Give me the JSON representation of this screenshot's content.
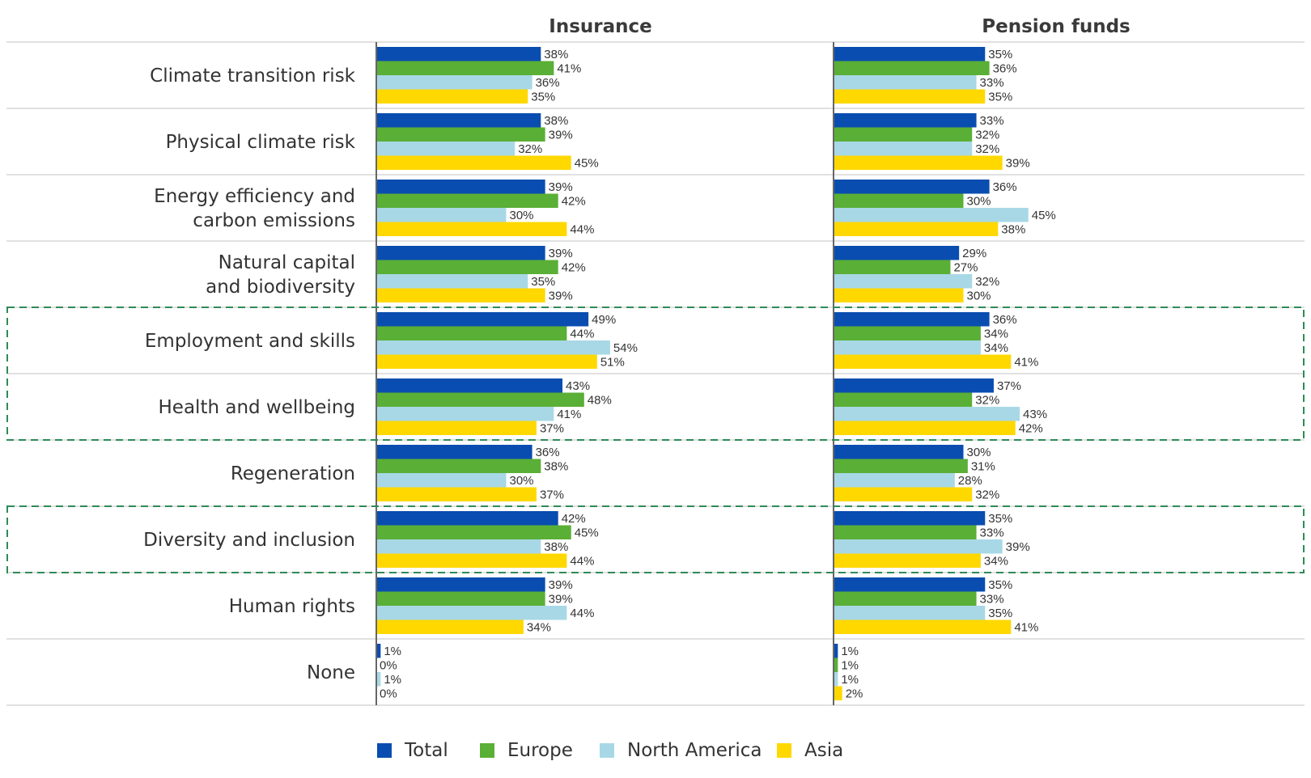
{
  "chart_data": {
    "type": "bar",
    "orientation": "horizontal",
    "panels": [
      "Insurance",
      "Pension funds"
    ],
    "categories": [
      "Climate transition risk",
      "Physical climate risk",
      "Energy efficiency and carbon emissions",
      "Natural capital and biodiversity",
      "Employment and skills",
      "Health and wellbeing",
      "Regeneration",
      "Diversity and inclusion",
      "Human rights",
      "None"
    ],
    "category_lines": [
      [
        "Climate transition risk"
      ],
      [
        "Physical climate risk"
      ],
      [
        "Energy efficiency and",
        "carbon emissions"
      ],
      [
        "Natural capital",
        "and biodiversity"
      ],
      [
        "Employment and skills"
      ],
      [
        "Health and wellbeing"
      ],
      [
        "Regeneration"
      ],
      [
        "Diversity and inclusion"
      ],
      [
        "Human rights"
      ],
      [
        "None"
      ]
    ],
    "series": [
      {
        "name": "Total",
        "color": "#0a4db0",
        "insurance": [
          38,
          38,
          39,
          39,
          49,
          43,
          36,
          42,
          39,
          1
        ],
        "pension_funds": [
          35,
          33,
          36,
          29,
          36,
          37,
          30,
          35,
          35,
          1
        ]
      },
      {
        "name": "Europe",
        "color": "#5aaf36",
        "insurance": [
          41,
          39,
          42,
          42,
          44,
          48,
          38,
          45,
          39,
          0
        ],
        "pension_funds": [
          36,
          32,
          30,
          27,
          34,
          32,
          31,
          33,
          33,
          1
        ]
      },
      {
        "name": "North America",
        "color": "#a8d8e6",
        "insurance": [
          36,
          32,
          30,
          35,
          54,
          41,
          30,
          38,
          44,
          1
        ],
        "pension_funds": [
          33,
          32,
          45,
          32,
          34,
          43,
          28,
          39,
          35,
          1
        ]
      },
      {
        "name": "Asia",
        "color": "#ffd800",
        "insurance": [
          35,
          45,
          44,
          39,
          51,
          37,
          37,
          44,
          34,
          0
        ],
        "pension_funds": [
          35,
          39,
          38,
          30,
          41,
          42,
          32,
          34,
          41,
          2
        ]
      }
    ],
    "value_suffix": "%",
    "highlighted_groups": [
      [
        "Employment and skills",
        "Health and wellbeing"
      ],
      [
        "Diversity and inclusion"
      ]
    ],
    "highlight_color": "#2e8b57",
    "legend_position": "bottom"
  }
}
